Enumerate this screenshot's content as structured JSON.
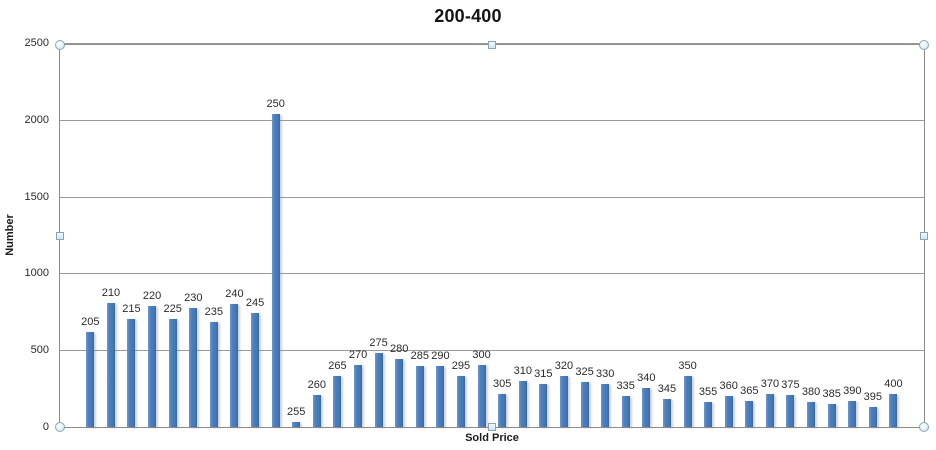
{
  "chart": {
    "title": "200-400",
    "xlabel": "Sold Price",
    "ylabel": "Number"
  },
  "chart_data": {
    "type": "bar",
    "title": "200-400",
    "xlabel": "Sold Price",
    "ylabel": "Number",
    "ylim": [
      0,
      2500
    ],
    "yticks": [
      0,
      500,
      1000,
      1500,
      2000,
      2500
    ],
    "grid": true,
    "legend": false,
    "data_labels": "category name above each bar",
    "categories": [
      "205",
      "210",
      "215",
      "220",
      "225",
      "230",
      "235",
      "240",
      "245",
      "250",
      "255",
      "260",
      "265",
      "270",
      "275",
      "280",
      "285",
      "290",
      "295",
      "300",
      "305",
      "310",
      "315",
      "320",
      "325",
      "330",
      "335",
      "340",
      "345",
      "350",
      "355",
      "360",
      "365",
      "370",
      "375",
      "380",
      "385",
      "390",
      "395",
      "400"
    ],
    "values": [
      620,
      805,
      705,
      790,
      700,
      775,
      685,
      800,
      740,
      2040,
      30,
      210,
      330,
      405,
      480,
      445,
      400,
      395,
      335,
      405,
      215,
      300,
      280,
      330,
      295,
      280,
      205,
      255,
      185,
      335,
      165,
      205,
      170,
      215,
      210,
      160,
      150,
      170,
      130,
      215
    ]
  },
  "colors": {
    "bar_fill": "#4A7EBB",
    "gridline": "#9B9B9B",
    "plot_border": "#8C8C8C",
    "text": "#2B2B2B",
    "selection_handle_fill": "#DFF0F8",
    "selection_handle_border": "#8BA3B5"
  },
  "selection": {
    "state": "plot area selected",
    "handles": [
      "top-left",
      "top-center",
      "top-right",
      "left-middle",
      "right-middle",
      "bottom-left",
      "bottom-center",
      "bottom-right"
    ]
  }
}
